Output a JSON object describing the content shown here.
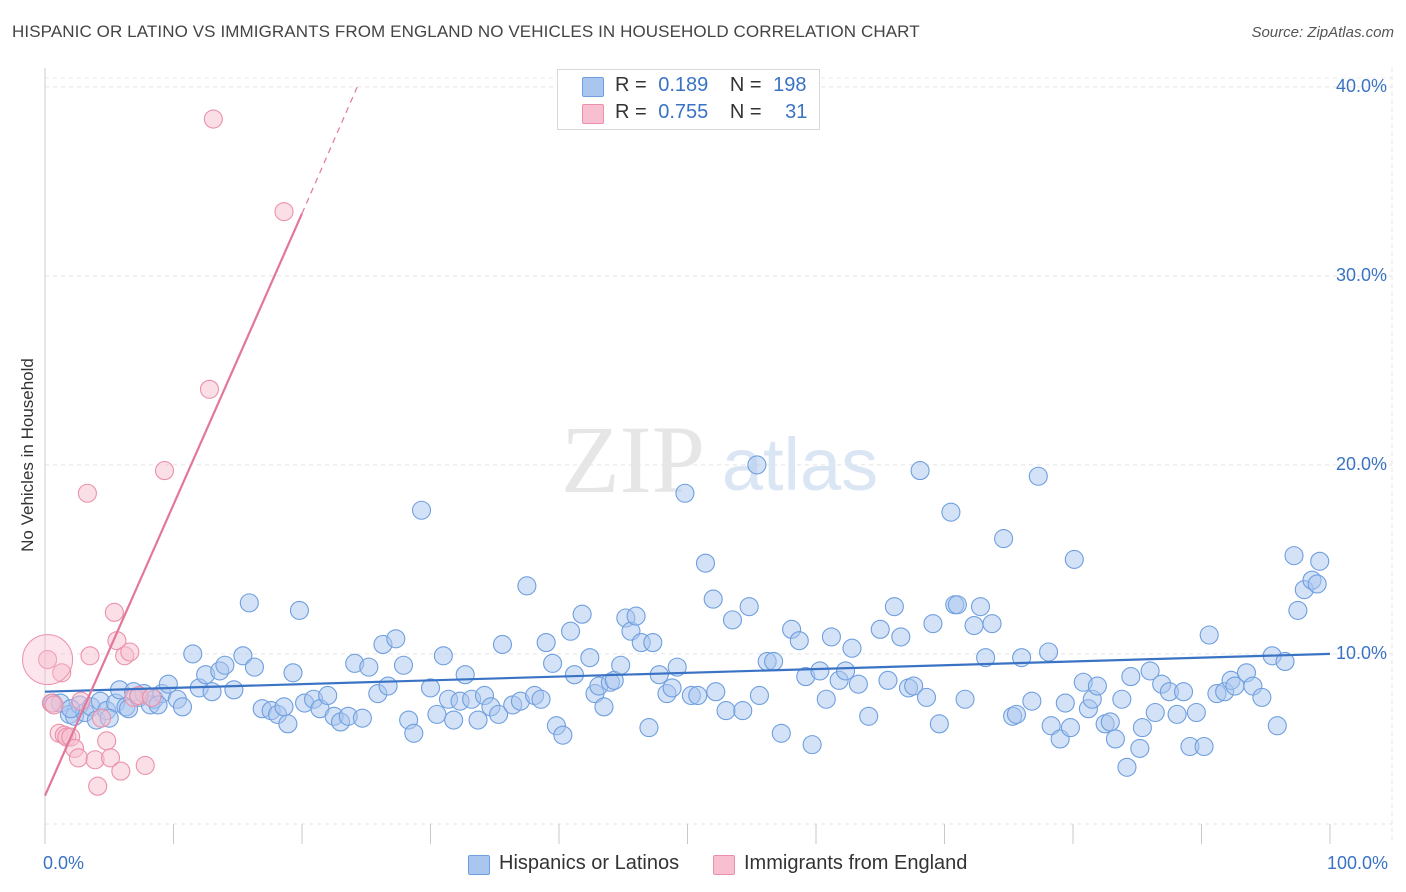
{
  "title": "HISPANIC OR LATINO VS IMMIGRANTS FROM ENGLAND NO VEHICLES IN HOUSEHOLD CORRELATION CHART",
  "source": "Source: ZipAtlas.com",
  "watermark": {
    "zip": "ZIP",
    "atlas": "atlas"
  },
  "legend": {
    "rows": [
      {
        "r_label": "R =",
        "r_value": "0.189",
        "n_label": "N =",
        "n_value": "198",
        "color": "#a9c6ef",
        "stroke": "#6f9fde"
      },
      {
        "r_label": "R =",
        "r_value": "0.755",
        "n_label": "N =",
        "n_value": "31",
        "color": "#f7bfcf",
        "stroke": "#eb90aa"
      }
    ]
  },
  "chart_data": {
    "type": "scatter",
    "title": "HISPANIC OR LATINO VS IMMIGRANTS FROM ENGLAND NO VEHICLES IN HOUSEHOLD CORRELATION CHART",
    "xlabel": "",
    "ylabel": "No Vehicles in Household",
    "xlim": [
      0,
      100
    ],
    "ylim": [
      1.0,
      41.0
    ],
    "x_tick_labels": [
      "0.0%",
      "100.0%"
    ],
    "y_ticks": [
      10,
      20,
      30,
      40
    ],
    "y_tick_labels": [
      "10.0%",
      "20.0%",
      "30.0%",
      "40.0%"
    ],
    "grid": "horizontal dashed",
    "legend_position": "top-center",
    "series": [
      {
        "name": "Hispanics or Latinos",
        "color": "#a9c6ef",
        "stroke": "#6f9fde",
        "line_color": "#3a73c4",
        "trend": {
          "x": [
            0,
            100
          ],
          "y": [
            8.0,
            10.0
          ]
        },
        "points": [
          [
            0.6,
            7.4
          ],
          [
            1.2,
            7.4
          ],
          [
            1.9,
            6.8
          ],
          [
            2.3,
            6.7
          ],
          [
            2.7,
            7.3
          ],
          [
            3.1,
            6.9
          ],
          [
            3.6,
            7.2
          ],
          [
            4.0,
            6.5
          ],
          [
            4.3,
            7.5
          ],
          [
            4.8,
            7.0
          ],
          [
            5.5,
            7.4
          ],
          [
            5.8,
            8.1
          ],
          [
            6.3,
            7.2
          ],
          [
            6.5,
            7.1
          ],
          [
            6.9,
            8.0
          ],
          [
            7.3,
            7.7
          ],
          [
            7.7,
            7.9
          ],
          [
            8.2,
            7.3
          ],
          [
            8.5,
            7.6
          ],
          [
            9.1,
            7.9
          ],
          [
            9.6,
            8.4
          ],
          [
            10.3,
            7.6
          ],
          [
            10.7,
            7.2
          ],
          [
            11.5,
            10.0
          ],
          [
            12.0,
            8.2
          ],
          [
            12.5,
            8.9
          ],
          [
            13.0,
            8.0
          ],
          [
            13.6,
            9.1
          ],
          [
            14.0,
            9.4
          ],
          [
            14.7,
            8.1
          ],
          [
            15.4,
            9.9
          ],
          [
            15.9,
            12.7
          ],
          [
            16.3,
            9.3
          ],
          [
            16.9,
            7.1
          ],
          [
            17.6,
            7.0
          ],
          [
            18.1,
            6.8
          ],
          [
            18.6,
            7.2
          ],
          [
            18.9,
            6.3
          ],
          [
            19.3,
            9.0
          ],
          [
            19.8,
            12.3
          ],
          [
            20.2,
            7.4
          ],
          [
            20.9,
            7.6
          ],
          [
            21.4,
            7.1
          ],
          [
            22.0,
            7.8
          ],
          [
            22.5,
            6.7
          ],
          [
            23.0,
            6.4
          ],
          [
            23.6,
            6.7
          ],
          [
            24.1,
            9.5
          ],
          [
            24.7,
            6.6
          ],
          [
            25.2,
            9.3
          ],
          [
            25.9,
            7.9
          ],
          [
            26.3,
            10.5
          ],
          [
            26.7,
            8.3
          ],
          [
            27.3,
            10.8
          ],
          [
            27.9,
            9.4
          ],
          [
            28.3,
            6.5
          ],
          [
            28.7,
            5.8
          ],
          [
            29.3,
            17.6
          ],
          [
            30.0,
            8.2
          ],
          [
            30.5,
            6.8
          ],
          [
            31.0,
            9.9
          ],
          [
            31.4,
            7.6
          ],
          [
            31.8,
            6.5
          ],
          [
            32.3,
            7.5
          ],
          [
            32.7,
            8.9
          ],
          [
            33.2,
            7.6
          ],
          [
            33.7,
            6.5
          ],
          [
            34.2,
            7.8
          ],
          [
            34.7,
            7.2
          ],
          [
            35.3,
            6.8
          ],
          [
            35.6,
            10.5
          ],
          [
            36.4,
            7.3
          ],
          [
            37.0,
            7.5
          ],
          [
            37.5,
            13.6
          ],
          [
            38.1,
            7.8
          ],
          [
            38.6,
            7.6
          ],
          [
            39.0,
            10.6
          ],
          [
            39.5,
            9.5
          ],
          [
            39.8,
            6.2
          ],
          [
            40.3,
            5.7
          ],
          [
            40.9,
            11.2
          ],
          [
            41.2,
            8.9
          ],
          [
            41.8,
            12.1
          ],
          [
            42.4,
            9.8
          ],
          [
            42.8,
            7.9
          ],
          [
            43.1,
            8.3
          ],
          [
            43.5,
            7.2
          ],
          [
            44.0,
            8.5
          ],
          [
            44.3,
            8.6
          ],
          [
            44.8,
            9.4
          ],
          [
            45.2,
            11.9
          ],
          [
            45.6,
            11.2
          ],
          [
            46.0,
            12.0
          ],
          [
            46.4,
            10.6
          ],
          [
            47.0,
            6.1
          ],
          [
            47.3,
            10.6
          ],
          [
            47.8,
            8.9
          ],
          [
            48.4,
            7.9
          ],
          [
            48.8,
            8.2
          ],
          [
            49.2,
            9.3
          ],
          [
            49.8,
            18.5
          ],
          [
            50.3,
            7.8
          ],
          [
            50.8,
            7.8
          ],
          [
            51.4,
            14.8
          ],
          [
            52.0,
            12.9
          ],
          [
            52.2,
            8.0
          ],
          [
            53.0,
            7.0
          ],
          [
            53.5,
            11.8
          ],
          [
            54.3,
            7.0
          ],
          [
            54.8,
            12.5
          ],
          [
            55.4,
            20.0
          ],
          [
            55.6,
            7.8
          ],
          [
            56.2,
            9.6
          ],
          [
            56.7,
            9.6
          ],
          [
            57.3,
            5.8
          ],
          [
            58.1,
            11.3
          ],
          [
            58.7,
            10.7
          ],
          [
            59.2,
            8.8
          ],
          [
            59.7,
            5.2
          ],
          [
            60.3,
            9.1
          ],
          [
            60.8,
            7.6
          ],
          [
            61.2,
            10.9
          ],
          [
            61.8,
            8.6
          ],
          [
            62.3,
            9.1
          ],
          [
            62.8,
            10.3
          ],
          [
            63.3,
            8.4
          ],
          [
            64.1,
            6.7
          ],
          [
            65.0,
            11.3
          ],
          [
            65.6,
            8.6
          ],
          [
            66.1,
            12.5
          ],
          [
            66.6,
            10.9
          ],
          [
            67.2,
            8.2
          ],
          [
            67.6,
            8.3
          ],
          [
            68.1,
            19.7
          ],
          [
            68.6,
            7.7
          ],
          [
            69.1,
            11.6
          ],
          [
            69.6,
            6.3
          ],
          [
            70.5,
            17.5
          ],
          [
            70.8,
            12.6
          ],
          [
            71.0,
            12.6
          ],
          [
            71.6,
            7.6
          ],
          [
            72.3,
            11.5
          ],
          [
            72.8,
            12.5
          ],
          [
            73.2,
            9.8
          ],
          [
            73.7,
            11.6
          ],
          [
            74.6,
            16.1
          ],
          [
            75.3,
            6.7
          ],
          [
            75.6,
            6.8
          ],
          [
            76.0,
            9.8
          ],
          [
            76.8,
            7.5
          ],
          [
            77.3,
            19.4
          ],
          [
            78.1,
            10.1
          ],
          [
            78.3,
            6.2
          ],
          [
            79.0,
            5.5
          ],
          [
            79.4,
            7.4
          ],
          [
            79.8,
            6.1
          ],
          [
            80.1,
            15.0
          ],
          [
            80.8,
            8.5
          ],
          [
            81.2,
            7.1
          ],
          [
            81.5,
            7.6
          ],
          [
            81.9,
            8.3
          ],
          [
            82.5,
            6.3
          ],
          [
            82.9,
            6.4
          ],
          [
            83.3,
            5.5
          ],
          [
            83.8,
            7.6
          ],
          [
            84.2,
            4.0
          ],
          [
            84.5,
            8.8
          ],
          [
            85.2,
            5.0
          ],
          [
            85.4,
            6.1
          ],
          [
            86.0,
            9.1
          ],
          [
            86.4,
            6.9
          ],
          [
            86.9,
            8.4
          ],
          [
            87.5,
            8.0
          ],
          [
            88.1,
            6.8
          ],
          [
            88.6,
            8.0
          ],
          [
            89.1,
            5.1
          ],
          [
            89.6,
            6.9
          ],
          [
            90.2,
            5.1
          ],
          [
            90.6,
            11.0
          ],
          [
            91.2,
            7.9
          ],
          [
            91.8,
            8.0
          ],
          [
            92.3,
            8.6
          ],
          [
            92.6,
            8.3
          ],
          [
            93.5,
            9.0
          ],
          [
            94.0,
            8.3
          ],
          [
            94.7,
            7.7
          ],
          [
            95.5,
            9.9
          ],
          [
            95.9,
            6.2
          ],
          [
            96.5,
            9.6
          ],
          [
            97.2,
            15.2
          ],
          [
            97.5,
            12.3
          ],
          [
            98.0,
            13.4
          ],
          [
            98.6,
            13.9
          ],
          [
            99.0,
            13.7
          ],
          [
            99.2,
            14.9
          ],
          [
            2.0,
            7.1
          ],
          [
            5.0,
            6.6
          ],
          [
            8.8,
            7.3
          ]
        ]
      },
      {
        "name": "Immigrants from England",
        "color": "#f7bfcf",
        "stroke": "#eb90aa",
        "line_color": "#e2779c",
        "trend": {
          "x": [
            0,
            20
          ],
          "y": [
            2.5,
            33.3
          ]
        },
        "trend_dashed": {
          "x": [
            20,
            24.3
          ],
          "y": [
            33.3,
            40.0
          ]
        },
        "points": [
          [
            0.2,
            9.7
          ],
          [
            0.5,
            7.4
          ],
          [
            0.7,
            7.3
          ],
          [
            1.1,
            5.8
          ],
          [
            1.3,
            9.0
          ],
          [
            1.5,
            5.7
          ],
          [
            1.7,
            5.6
          ],
          [
            2.0,
            5.6
          ],
          [
            2.3,
            5.0
          ],
          [
            2.6,
            4.5
          ],
          [
            2.8,
            7.5
          ],
          [
            3.3,
            18.5
          ],
          [
            3.5,
            9.9
          ],
          [
            3.9,
            4.4
          ],
          [
            4.1,
            3.0
          ],
          [
            4.4,
            6.6
          ],
          [
            4.8,
            5.4
          ],
          [
            5.1,
            4.5
          ],
          [
            5.4,
            12.2
          ],
          [
            5.6,
            10.7
          ],
          [
            5.9,
            3.8
          ],
          [
            6.2,
            9.9
          ],
          [
            6.6,
            10.1
          ],
          [
            6.9,
            7.7
          ],
          [
            7.3,
            7.8
          ],
          [
            7.8,
            4.1
          ],
          [
            9.3,
            19.7
          ],
          [
            12.8,
            24.0
          ],
          [
            13.1,
            38.3
          ],
          [
            18.6,
            33.4
          ],
          [
            8.3,
            7.7
          ]
        ]
      }
    ]
  },
  "bottom_legend": [
    "Hispanics or Latinos",
    "Immigrants from England"
  ]
}
